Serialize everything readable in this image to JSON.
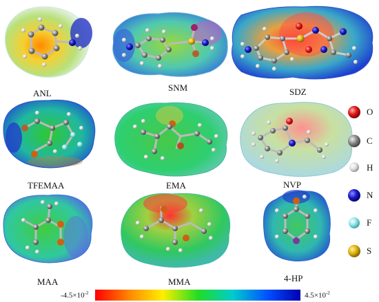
{
  "molecules": [
    {
      "id": "anl",
      "label": "ANL"
    },
    {
      "id": "snm",
      "label": "SNM"
    },
    {
      "id": "sdz",
      "label": "SDZ"
    },
    {
      "id": "tfemaa",
      "label": "TFEMAA"
    },
    {
      "id": "ema",
      "label": "EMA"
    },
    {
      "id": "nvp",
      "label": "NVP"
    },
    {
      "id": "maa",
      "label": "MAA"
    },
    {
      "id": "mma",
      "label": "MMA"
    },
    {
      "id": "hp4",
      "label": "4-HP"
    }
  ],
  "legend": [
    {
      "symbol": "O",
      "color": "#e01818"
    },
    {
      "symbol": "C",
      "color": "#8a8a8a"
    },
    {
      "symbol": "H",
      "color": "#e6e6e6"
    },
    {
      "symbol": "N",
      "color": "#1a1acc"
    },
    {
      "symbol": "F",
      "color": "#8ee6ea"
    },
    {
      "symbol": "S",
      "color": "#e0b410"
    }
  ],
  "scale": {
    "min_mantissa": "-4.5×10",
    "min_exp": "-2",
    "max_mantissa": "4.5×10",
    "max_exp": "-2",
    "colors": [
      "#ff0000",
      "#ff8a00",
      "#ffee00",
      "#22dd22",
      "#00cccc",
      "#0050ff",
      "#0000b0"
    ]
  }
}
